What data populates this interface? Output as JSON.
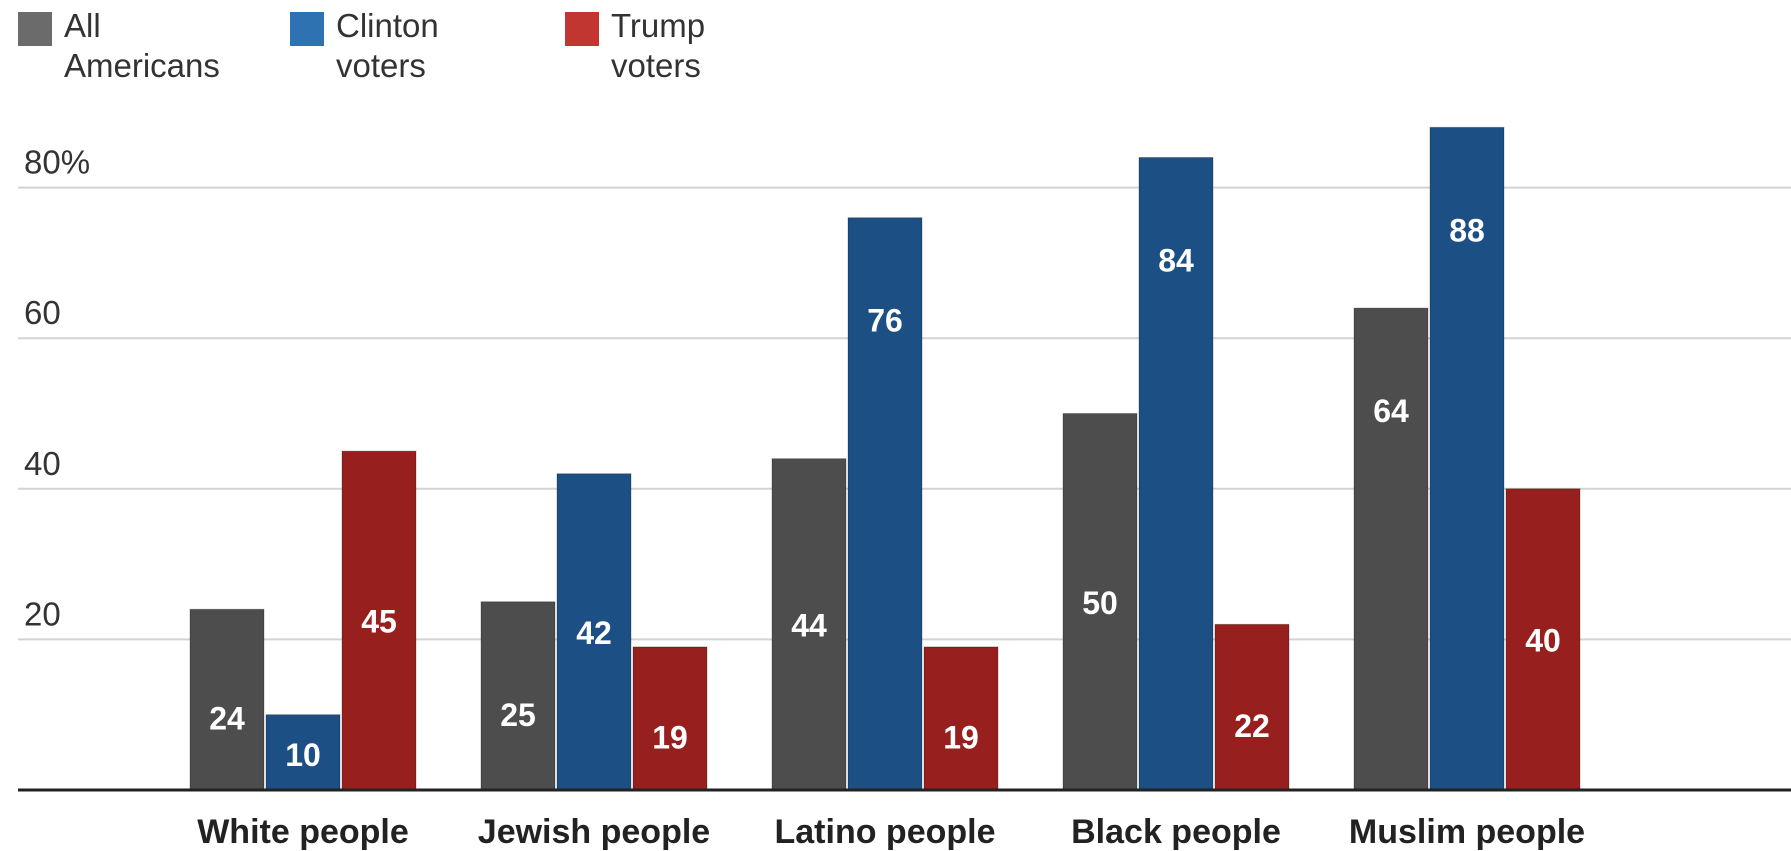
{
  "chart_data": {
    "type": "bar",
    "categories": [
      "White people",
      "Jewish people",
      "Latino people",
      "Black people",
      "Muslim people"
    ],
    "series": [
      {
        "name": "All Americans",
        "name_lines": [
          "All",
          "Americans"
        ],
        "color": "#4d4d4d",
        "legend_color": "#6b6b6b",
        "values": [
          24,
          25,
          44,
          50,
          64
        ]
      },
      {
        "name": "Clinton voters",
        "name_lines": [
          "Clinton",
          "voters"
        ],
        "color": "#1c5085",
        "legend_color": "#2f72b2",
        "values": [
          10,
          42,
          76,
          84,
          88
        ]
      },
      {
        "name": "Trump voters",
        "name_lines": [
          "Trump",
          "voters"
        ],
        "color": "#97201e",
        "legend_color": "#c23632",
        "values": [
          45,
          19,
          19,
          22,
          40
        ]
      }
    ],
    "y_ticks": [
      {
        "value": 20,
        "label": "20"
      },
      {
        "value": 40,
        "label": "40"
      },
      {
        "value": 60,
        "label": "60"
      },
      {
        "value": 80,
        "label": "80%"
      }
    ],
    "ylim": [
      0,
      90
    ],
    "grid": true,
    "legend_position": "top-left",
    "title": "",
    "xlabel": "",
    "ylabel": ""
  }
}
